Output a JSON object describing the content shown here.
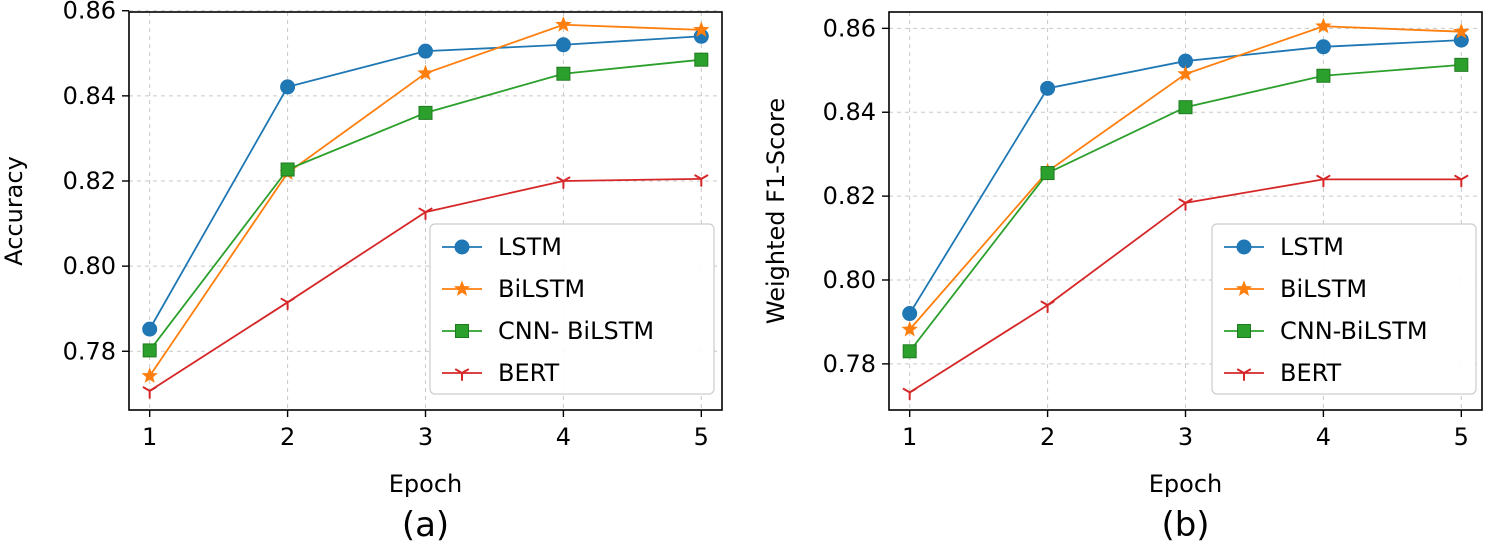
{
  "colors": {
    "LSTM": "#1f77b4",
    "BiLSTM": "#ff7f0e",
    "CNN-BiLSTM": "#2ca02c",
    "BERT": "#d62728",
    "grid": "#c8c8c8",
    "axis": "#000000"
  },
  "chart_data": [
    {
      "type": "line",
      "panel_label": "(a)",
      "title": "",
      "xlabel": "Epoch",
      "ylabel": "Accuracy",
      "x": [
        1,
        2,
        3,
        4,
        5
      ],
      "xlim": [
        0.85,
        5.15
      ],
      "ylim": [
        0.7662,
        0.8597
      ],
      "xticks": [
        1,
        2,
        3,
        4,
        5
      ],
      "yticks": [
        0.78,
        0.8,
        0.82,
        0.84,
        0.86
      ],
      "yticklabels": [
        "0.78",
        "0.80",
        "0.82",
        "0.84",
        "0.86"
      ],
      "grid": true,
      "legend": "center-right",
      "series": [
        {
          "name": "LSTM",
          "legend_label": "LSTM",
          "marker": "circle",
          "values": [
            0.7852,
            0.8421,
            0.8505,
            0.852,
            0.854
          ]
        },
        {
          "name": "BiLSTM",
          "legend_label": "BiLSTM",
          "marker": "star",
          "values": [
            0.7742,
            0.8219,
            0.8453,
            0.8567,
            0.8555
          ]
        },
        {
          "name": "CNN-BiLSTM",
          "legend_label": "CNN- BiLSTM",
          "marker": "square",
          "values": [
            0.7802,
            0.8227,
            0.836,
            0.8452,
            0.8485
          ]
        },
        {
          "name": "BERT",
          "legend_label": "BERT",
          "marker": "tri_down",
          "values": [
            0.7707,
            0.7915,
            0.8127,
            0.82,
            0.8205
          ]
        }
      ]
    },
    {
      "type": "line",
      "panel_label": "(b)",
      "title": "",
      "xlabel": "Epoch",
      "ylabel": "Weighted F1-Score",
      "x": [
        1,
        2,
        3,
        4,
        5
      ],
      "xlim": [
        0.85,
        5.15
      ],
      "ylim": [
        0.769,
        0.8639
      ],
      "xticks": [
        1,
        2,
        3,
        4,
        5
      ],
      "yticks": [
        0.78,
        0.8,
        0.82,
        0.84,
        0.86
      ],
      "yticklabels": [
        "0.78",
        "0.80",
        "0.82",
        "0.84",
        "0.86"
      ],
      "grid": true,
      "legend": "center-right",
      "series": [
        {
          "name": "LSTM",
          "legend_label": "LSTM",
          "marker": "circle",
          "values": [
            0.792,
            0.8457,
            0.8522,
            0.8556,
            0.8572
          ]
        },
        {
          "name": "BiLSTM",
          "legend_label": "BiLSTM",
          "marker": "star",
          "values": [
            0.7882,
            0.8259,
            0.8491,
            0.8605,
            0.8592
          ]
        },
        {
          "name": "CNN-BiLSTM",
          "legend_label": "CNN-BiLSTM",
          "marker": "square",
          "values": [
            0.783,
            0.8255,
            0.8412,
            0.8487,
            0.8513
          ]
        },
        {
          "name": "BERT",
          "legend_label": "BERT",
          "marker": "tri_down",
          "values": [
            0.7732,
            0.794,
            0.8184,
            0.824,
            0.824
          ]
        }
      ]
    }
  ]
}
